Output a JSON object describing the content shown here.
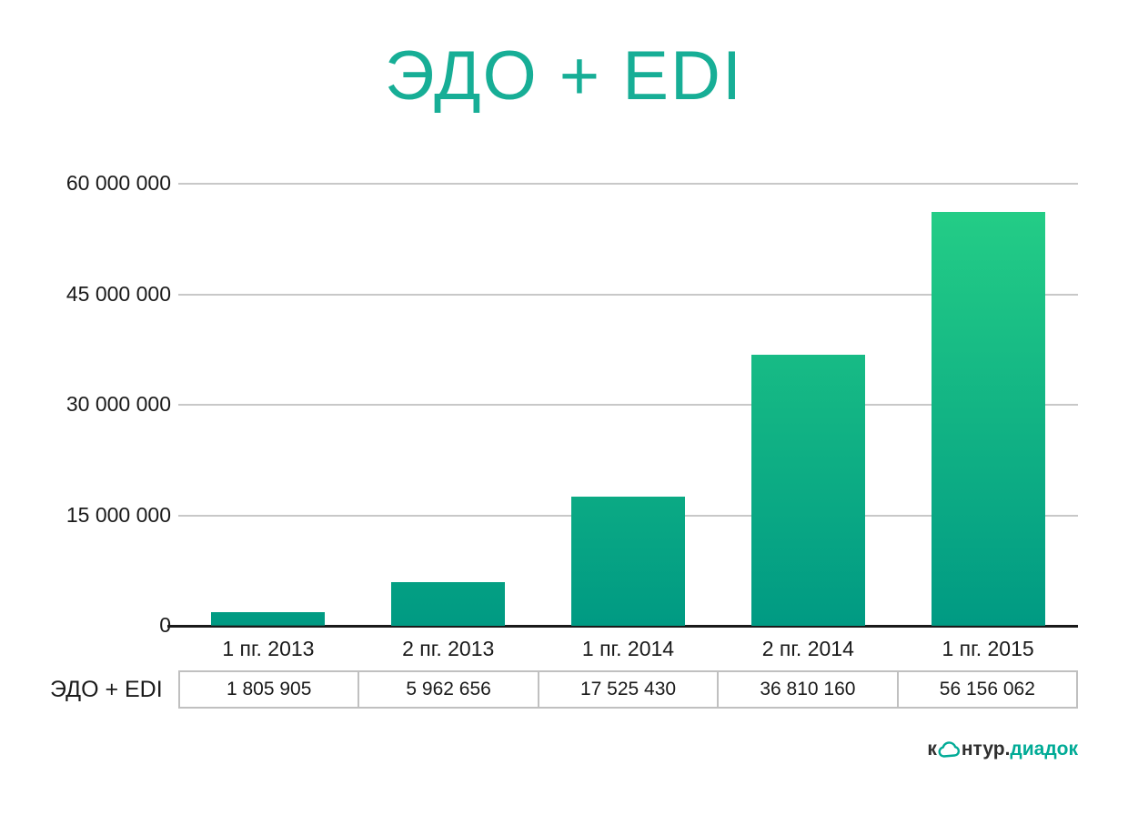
{
  "title": "ЭДО + EDI",
  "colors": {
    "accent_teal": "#17ae96",
    "bar_gradient_bottom": "#009a83",
    "bar_gradient_top": "#26d086",
    "gridline": "#c8c8c8",
    "axis": "#1a1a1a",
    "table_border": "#c0c0c0",
    "logo_dark": "#2f2f2f",
    "logo_teal": "#00ab96"
  },
  "chart_data": {
    "type": "bar",
    "title": "ЭДО + EDI",
    "categories": [
      "1 пг. 2013",
      "2 пг. 2013",
      "1 пг. 2014",
      "2 пг. 2014",
      "1 пг. 2015"
    ],
    "values": [
      1805905,
      5962656,
      17525430,
      36810160,
      56156062
    ],
    "value_labels": [
      "1 805 905",
      "5 962 656",
      "17 525 430",
      "36 810 160",
      "56 156 062"
    ],
    "series_label": "ЭДО + EDI",
    "xlabel": "",
    "ylabel": "",
    "ylim": [
      0,
      60000000
    ],
    "yticks": [
      0,
      15000000,
      30000000,
      45000000,
      60000000
    ],
    "ytick_labels": [
      "0",
      "15 000 000",
      "30 000 000",
      "45 000 000",
      "60 000 000"
    ],
    "grid": true,
    "legend_position": "none",
    "bar_style": "vertical gradient teal-to-green anchored at baseline"
  },
  "table": {
    "row_label": "ЭДО + EDI"
  },
  "branding": {
    "logo_part1": "к",
    "logo_part2": "нтур.",
    "logo_part3": "диадок",
    "logo_icon": "cloud-icon"
  }
}
